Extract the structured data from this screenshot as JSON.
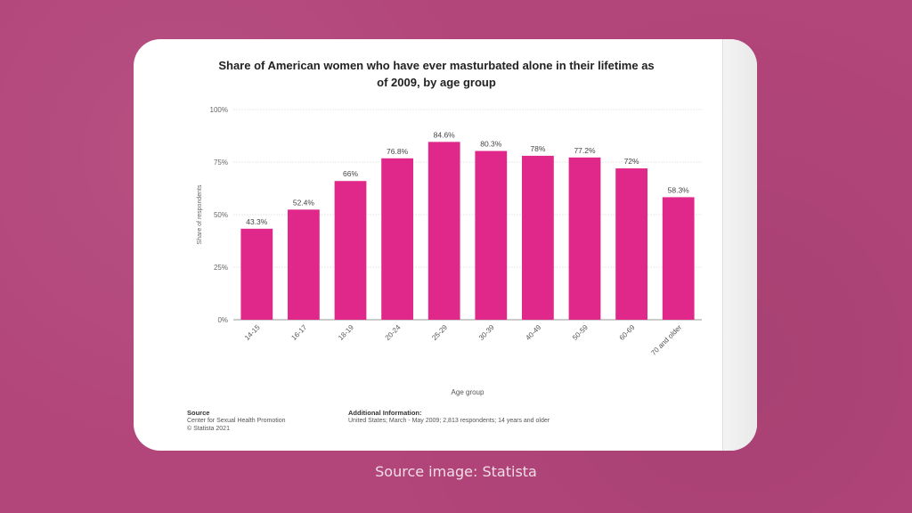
{
  "chart_data": {
    "type": "bar",
    "title": "Share of American women who have ever masturbated alone in their lifetime as of 2009, by age group",
    "xlabel": "Age group",
    "ylabel": "Share of respondents",
    "categories": [
      "14-15",
      "16-17",
      "18-19",
      "20-24",
      "25-29",
      "30-39",
      "40-49",
      "50-59",
      "60-69",
      "70 and older"
    ],
    "values": [
      43.3,
      52.4,
      66,
      76.8,
      84.6,
      80.3,
      78,
      77.2,
      72,
      58.3
    ],
    "value_labels": [
      "43.3%",
      "52.4%",
      "66%",
      "76.8%",
      "84.6%",
      "80.3%",
      "78%",
      "77.2%",
      "72%",
      "58.3%"
    ],
    "yticks": [
      "0%",
      "25%",
      "50%",
      "75%",
      "100%"
    ],
    "ylim": [
      0,
      100
    ],
    "grid": true,
    "bar_color": "#e0288a"
  },
  "footer": {
    "source_heading": "Source",
    "source_line1": "Center for Sexual Health Promotion",
    "source_line2": "© Statista 2021",
    "info_heading": "Additional Information:",
    "info_text": "United States; March - May 2009; 2,813 respondents; 14 years and older"
  },
  "caption": "Source image: Statista"
}
